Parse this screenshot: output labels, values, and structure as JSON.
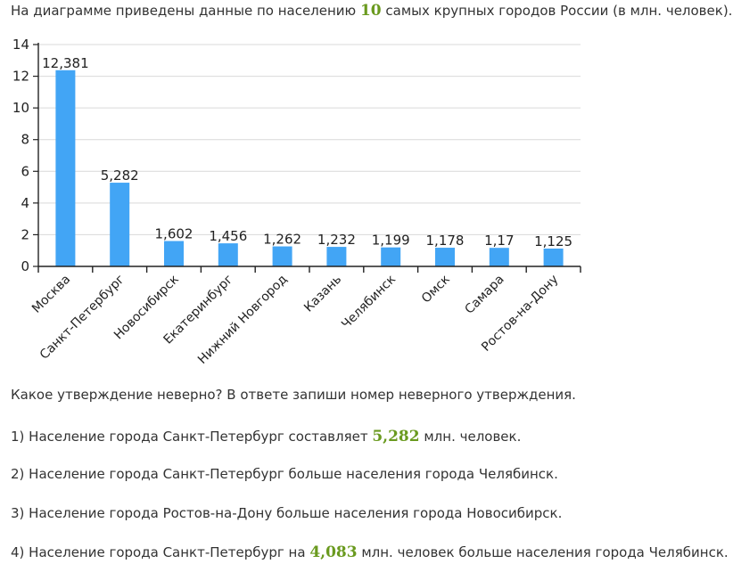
{
  "intro": {
    "before": "На диаграмме приведены данные по населению",
    "number": "10",
    "after": "самых крупных городов России (в млн. человек)."
  },
  "question": "Какое утверждение неверно? В ответе запиши номер неверного утверждения.",
  "statements": [
    {
      "before": "1) Население города Санкт-Петербург составляет",
      "number": "5,282",
      "after": "млн. человек."
    },
    {
      "before": "2) Население города Санкт-Петербург больше населения города Челябинск.",
      "number": "",
      "after": ""
    },
    {
      "before": "3) Население города Ростов-на-Дону больше населения города Новосибирск.",
      "number": "",
      "after": ""
    },
    {
      "before": "4) Население города Санкт-Петербург на",
      "number": "4,083",
      "after": "млн. человек больше населения города Челябинск."
    }
  ],
  "colors": {
    "bar": "#42a5f5",
    "accent_number": "#6a9a1f",
    "grid": "#d9d9d9",
    "axis": "#222222"
  },
  "chart_data": {
    "type": "bar",
    "categories": [
      "Москва",
      "Санкт-Петербург",
      "Новосибирск",
      "Екатеринбург",
      "Нижний Новгород",
      "Казань",
      "Челябинск",
      "Омск",
      "Самара",
      "Ростов-на-Дону"
    ],
    "values": [
      12.381,
      5.282,
      1.602,
      1.456,
      1.262,
      1.232,
      1.199,
      1.178,
      1.17,
      1.125
    ],
    "value_labels": [
      "12,381",
      "5,282",
      "1,602",
      "1,456",
      "1,262",
      "1,232",
      "1,199",
      "1,178",
      "1,17",
      "1,125"
    ],
    "ylim": [
      0,
      14
    ],
    "yticks": [
      0,
      2,
      4,
      6,
      8,
      10,
      12,
      14
    ],
    "grid": true,
    "legend": "none"
  }
}
